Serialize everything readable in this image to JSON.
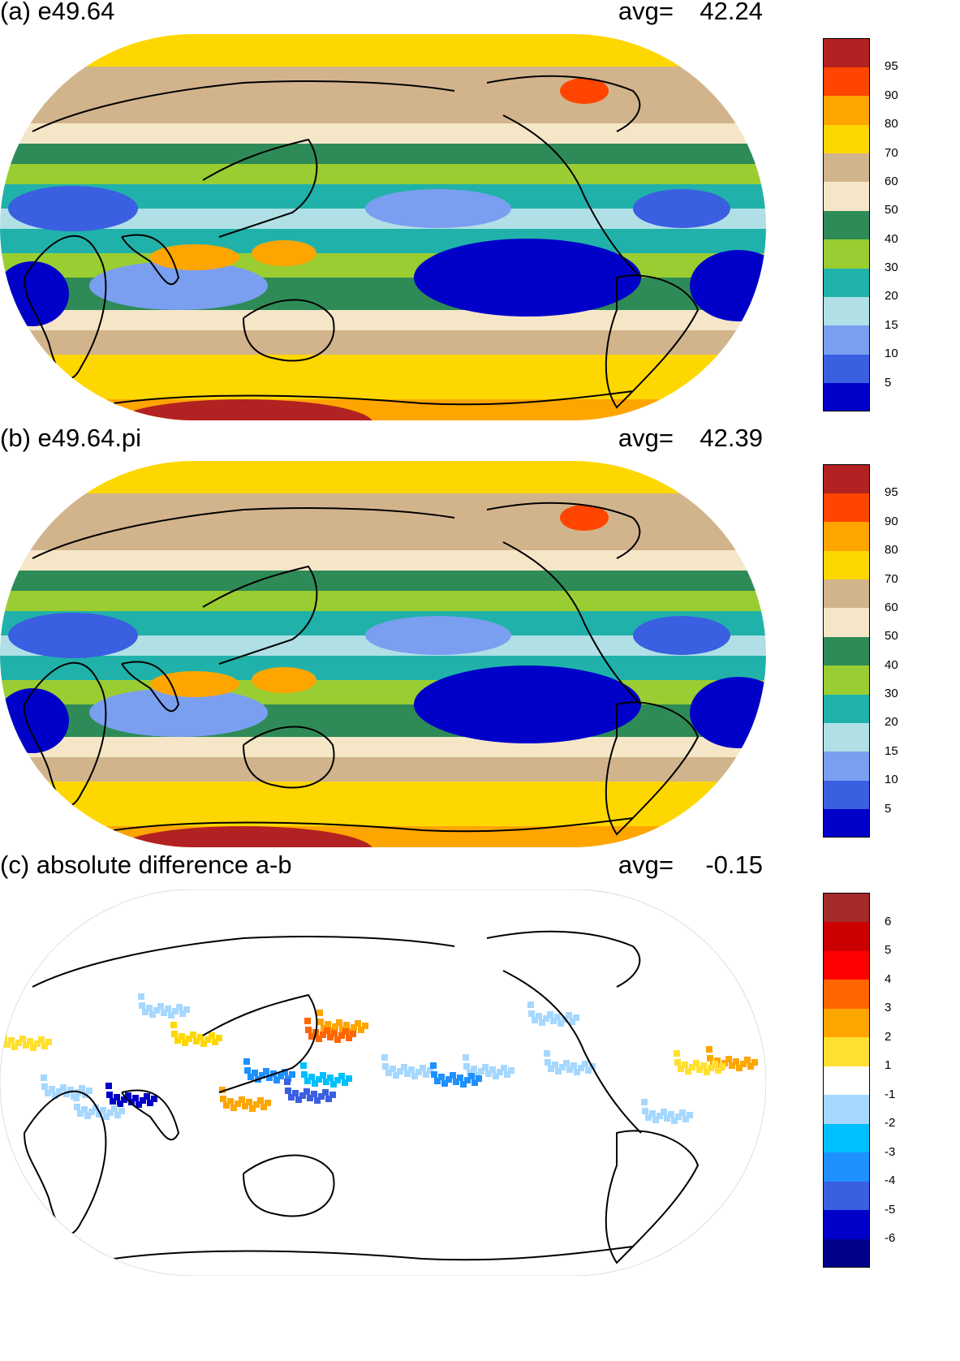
{
  "panels": [
    {
      "id": "a",
      "title": "(a) e49.64",
      "avg_label": "avg=",
      "avg_value": "42.24",
      "colorbar": {
        "colors": [
          "#0000c8",
          "#3a5fe0",
          "#7a9ff0",
          "#b0e0e6",
          "#20b2aa",
          "#9acd32",
          "#2e8b57",
          "#f5e6c8",
          "#d2b48c",
          "#ffd700",
          "#ffa500",
          "#ff4500",
          "#b22222"
        ],
        "labels": [
          "5",
          "10",
          "15",
          "20",
          "30",
          "40",
          "50",
          "60",
          "70",
          "80",
          "90",
          "95"
        ]
      }
    },
    {
      "id": "b",
      "title": "(b) e49.64.pi",
      "avg_label": "avg=",
      "avg_value": "42.39",
      "colorbar": {
        "colors": [
          "#0000c8",
          "#3a5fe0",
          "#7a9ff0",
          "#b0e0e6",
          "#20b2aa",
          "#9acd32",
          "#2e8b57",
          "#f5e6c8",
          "#d2b48c",
          "#ffd700",
          "#ffa500",
          "#ff4500",
          "#b22222"
        ],
        "labels": [
          "5",
          "10",
          "15",
          "20",
          "30",
          "40",
          "50",
          "60",
          "70",
          "80",
          "90",
          "95"
        ]
      }
    },
    {
      "id": "c",
      "title": "(c) absolute difference a-b",
      "avg_label": "avg=",
      "avg_value": "-0.15",
      "colorbar": {
        "colors": [
          "#00008b",
          "#0000c8",
          "#3a5fe0",
          "#1e90ff",
          "#00bfff",
          "#a6d8ff",
          "#ffffff",
          "#ffe030",
          "#ffa500",
          "#ff6600",
          "#ff0000",
          "#cc0000",
          "#a52a2a"
        ],
        "labels": [
          "-6",
          "-5",
          "-4",
          "-3",
          "-2",
          "-1",
          "1",
          "2",
          "3",
          "4",
          "5",
          "6"
        ]
      }
    }
  ]
}
